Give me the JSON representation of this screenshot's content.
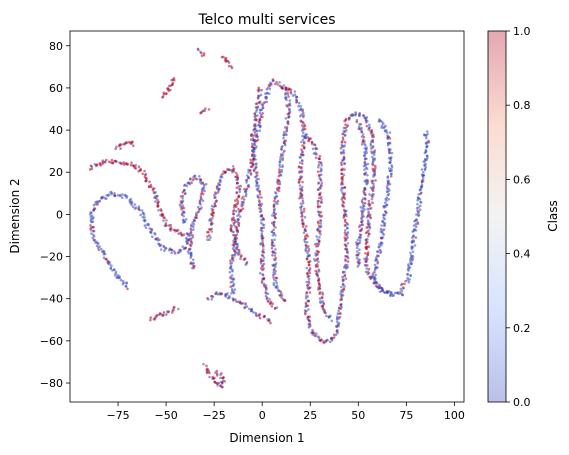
{
  "chart_data": {
    "type": "scatter",
    "title": "Telco multi services",
    "xlabel": "Dimension 1",
    "ylabel": "Dimension 2",
    "xlim": [
      -100,
      105
    ],
    "ylim": [
      -89,
      87
    ],
    "x_ticks": [
      "−75",
      "−50",
      "−25",
      "0",
      "25",
      "50",
      "75",
      "100"
    ],
    "x_tick_values": [
      -75,
      -50,
      -25,
      0,
      25,
      50,
      75,
      100
    ],
    "y_ticks": [
      "−80",
      "−60",
      "−40",
      "−20",
      "0",
      "20",
      "40",
      "60",
      "80"
    ],
    "y_tick_values": [
      -80,
      -60,
      -40,
      -20,
      0,
      20,
      40,
      60,
      80
    ],
    "grid": false,
    "colormap": "coolwarm",
    "alpha": 0.35,
    "colorbar": {
      "label": "Class",
      "range": [
        0,
        1
      ],
      "tick_labels": [
        "0.0",
        "0.2",
        "0.4",
        "0.6",
        "0.8",
        "1.0"
      ],
      "tick_values": [
        0,
        0.2,
        0.4,
        0.6,
        0.8,
        1.0
      ],
      "colors": [
        "#3b4cc0",
        "#b40426"
      ]
    },
    "series": [
      {
        "class_mix": 0.15,
        "points": [
          [
            -70,
            -35
          ],
          [
            -80,
            -23
          ],
          [
            -88,
            -10
          ],
          [
            -89,
            0
          ],
          [
            -86,
            6
          ],
          [
            -78,
            10
          ],
          [
            -70,
            8
          ],
          [
            -64,
            2
          ],
          [
            -58,
            -8
          ],
          [
            -52,
            -16
          ],
          [
            -45,
            -18
          ],
          [
            -40,
            -15
          ],
          [
            -38,
            -8
          ]
        ]
      },
      {
        "class_mix": 0.7,
        "points": [
          [
            -90,
            22
          ],
          [
            -82,
            25
          ],
          [
            -75,
            25
          ],
          [
            -68,
            24
          ],
          [
            -62,
            20
          ],
          [
            -57,
            12
          ],
          [
            -53,
            2
          ],
          [
            -50,
            -5
          ],
          [
            -45,
            -8
          ],
          [
            -40,
            -10
          ]
        ]
      },
      {
        "class_mix": 0.75,
        "points": [
          [
            -76,
            31
          ],
          [
            -70,
            34
          ],
          [
            -66,
            33
          ]
        ]
      },
      {
        "class_mix": 0.75,
        "points": [
          [
            -52,
            56
          ],
          [
            -48,
            60
          ],
          [
            -45,
            65
          ]
        ]
      },
      {
        "class_mix": 0.8,
        "points": [
          [
            -33,
            78
          ],
          [
            -30,
            75
          ]
        ]
      },
      {
        "class_mix": 0.8,
        "points": [
          [
            -20,
            75
          ],
          [
            -17,
            72
          ],
          [
            -15,
            70
          ]
        ]
      },
      {
        "class_mix": 0.6,
        "points": [
          [
            -32,
            48
          ],
          [
            -28,
            50
          ]
        ]
      },
      {
        "class_mix": 0.3,
        "points": [
          [
            -36,
            -26
          ],
          [
            -38,
            -15
          ],
          [
            -36,
            -5
          ],
          [
            -32,
            5
          ],
          [
            -30,
            14
          ],
          [
            -34,
            18
          ],
          [
            -40,
            14
          ],
          [
            -42,
            5
          ],
          [
            -40,
            -5
          ]
        ]
      },
      {
        "class_mix": 0.45,
        "points": [
          [
            -28,
            -12
          ],
          [
            -26,
            0
          ],
          [
            -24,
            10
          ],
          [
            -20,
            20
          ],
          [
            -15,
            22
          ],
          [
            -12,
            14
          ],
          [
            -14,
            2
          ],
          [
            -16,
            -8
          ],
          [
            -12,
            -18
          ],
          [
            -8,
            -24
          ]
        ]
      },
      {
        "class_mix": 0.35,
        "points": [
          [
            -28,
            -40
          ],
          [
            -22,
            -37
          ],
          [
            -15,
            -40
          ],
          [
            -8,
            -44
          ],
          [
            -2,
            -48
          ],
          [
            5,
            -51
          ]
        ]
      },
      {
        "class_mix": 0.35,
        "points": [
          [
            -15,
            -38
          ],
          [
            -16,
            -25
          ],
          [
            -14,
            -12
          ],
          [
            -12,
            0
          ],
          [
            -9,
            10
          ],
          [
            -6,
            22
          ],
          [
            -3,
            35
          ],
          [
            0,
            50
          ],
          [
            3,
            58
          ],
          [
            6,
            63
          ],
          [
            12,
            60
          ],
          [
            14,
            50
          ],
          [
            12,
            38
          ],
          [
            10,
            24
          ],
          [
            8,
            12
          ],
          [
            6,
            -2
          ],
          [
            6,
            -18
          ],
          [
            7,
            -34
          ],
          [
            12,
            -42
          ]
        ]
      },
      {
        "class_mix": 0.4,
        "points": [
          [
            -1,
            60
          ],
          [
            -3,
            48
          ],
          [
            -5,
            38
          ],
          [
            -4,
            25
          ],
          [
            -2,
            12
          ],
          [
            0,
            0
          ],
          [
            0,
            -15
          ],
          [
            0,
            -30
          ],
          [
            3,
            -40
          ],
          [
            7,
            -45
          ]
        ]
      },
      {
        "class_mix": 0.5,
        "points": [
          [
            10,
            60
          ],
          [
            16,
            58
          ],
          [
            20,
            50
          ],
          [
            22,
            38
          ],
          [
            20,
            25
          ],
          [
            20,
            10
          ],
          [
            22,
            -5
          ],
          [
            24,
            -20
          ],
          [
            24,
            -35
          ],
          [
            23,
            -46
          ],
          [
            26,
            -56
          ],
          [
            32,
            -61
          ],
          [
            38,
            -58
          ],
          [
            40,
            -48
          ],
          [
            42,
            -35
          ],
          [
            44,
            -22
          ],
          [
            44,
            -8
          ],
          [
            42,
            8
          ],
          [
            42,
            22
          ],
          [
            42,
            34
          ],
          [
            44,
            44
          ],
          [
            48,
            48
          ],
          [
            54,
            46
          ],
          [
            57,
            38
          ],
          [
            58,
            28
          ],
          [
            58,
            16
          ],
          [
            56,
            4
          ],
          [
            55,
            -10
          ],
          [
            54,
            -20
          ],
          [
            55,
            -28
          ],
          [
            60,
            -34
          ],
          [
            66,
            -38
          ],
          [
            72,
            -38
          ],
          [
            74,
            -32
          ]
        ]
      },
      {
        "class_mix": 0.5,
        "points": [
          [
            22,
            38
          ],
          [
            26,
            34
          ],
          [
            30,
            25
          ],
          [
            30,
            10
          ],
          [
            30,
            -5
          ],
          [
            28,
            -20
          ],
          [
            30,
            -35
          ],
          [
            32,
            -46
          ],
          [
            36,
            -50
          ]
        ]
      },
      {
        "class_mix": 0.25,
        "points": [
          [
            50,
            44
          ],
          [
            54,
            30
          ],
          [
            54,
            15
          ],
          [
            52,
            0
          ],
          [
            50,
            -14
          ],
          [
            50,
            -25
          ]
        ]
      },
      {
        "class_mix": 0.05,
        "points": [
          [
            60,
            45
          ],
          [
            66,
            38
          ],
          [
            67,
            26
          ],
          [
            66,
            14
          ],
          [
            64,
            2
          ],
          [
            62,
            -12
          ],
          [
            60,
            -22
          ],
          [
            58,
            -30
          ],
          [
            62,
            -36
          ],
          [
            68,
            -37
          ]
        ]
      },
      {
        "class_mix": 0.05,
        "points": [
          [
            76,
            -32
          ],
          [
            78,
            -18
          ],
          [
            80,
            -5
          ],
          [
            82,
            8
          ],
          [
            84,
            22
          ],
          [
            86,
            32
          ],
          [
            85,
            40
          ]
        ]
      },
      {
        "class_mix": 0.55,
        "points": [
          [
            -58,
            -50
          ],
          [
            -54,
            -48
          ],
          [
            -48,
            -46
          ],
          [
            -44,
            -44
          ]
        ]
      },
      {
        "class_mix": 0.6,
        "points": [
          [
            -30,
            -72
          ],
          [
            -26,
            -78
          ],
          [
            -22,
            -82
          ],
          [
            -20,
            -78
          ],
          [
            -24,
            -74
          ]
        ]
      }
    ]
  }
}
